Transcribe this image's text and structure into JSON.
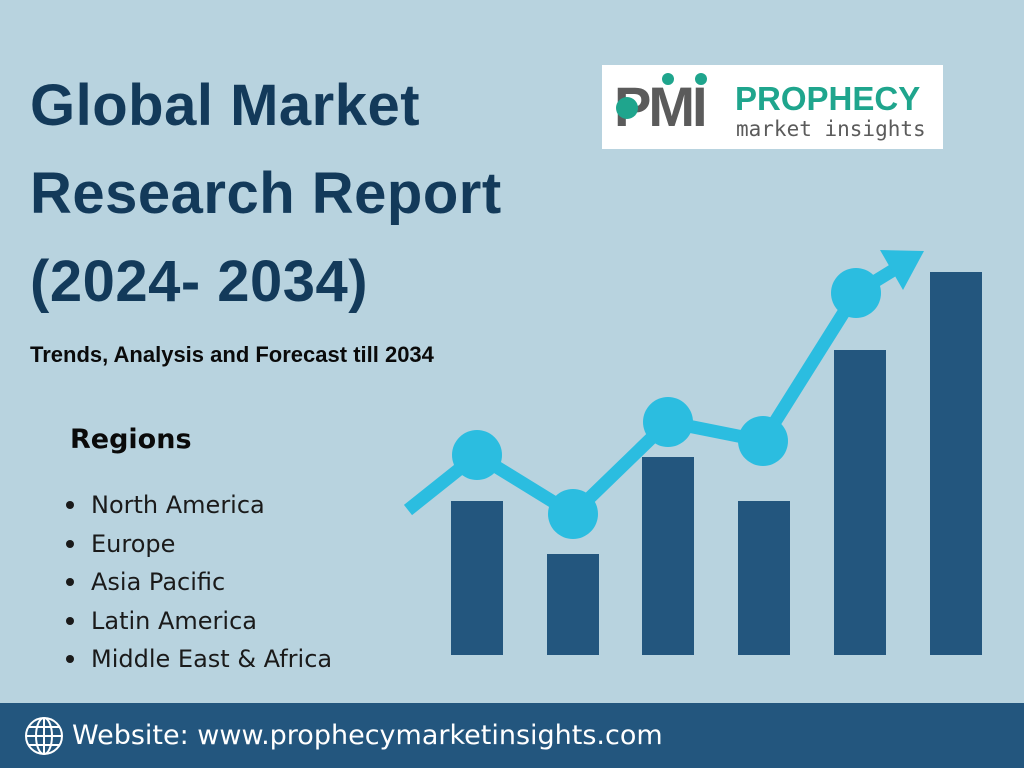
{
  "title_lines": [
    "Global Market",
    "Research Report",
    "(2024- 2034)"
  ],
  "subtitle": "Trends, Analysis and Forecast till 2034",
  "logo": {
    "mark": "PMI",
    "brand": "PROPHECY",
    "tagline": "market insights"
  },
  "regions": {
    "heading": "Regions",
    "items": [
      "North America",
      "Europe",
      "Asia Pacific",
      "Latin America",
      "Middle East & Africa"
    ]
  },
  "footer": {
    "icon": "globe-icon",
    "text": "Website: www.prophecymarketinsights.com"
  },
  "colors": {
    "background": "#b8d3df",
    "title": "#133a5a",
    "bars": "#23567e",
    "trend_line": "#2bbde0",
    "logo_accent": "#1fa58d",
    "footer": "#23567e"
  }
}
